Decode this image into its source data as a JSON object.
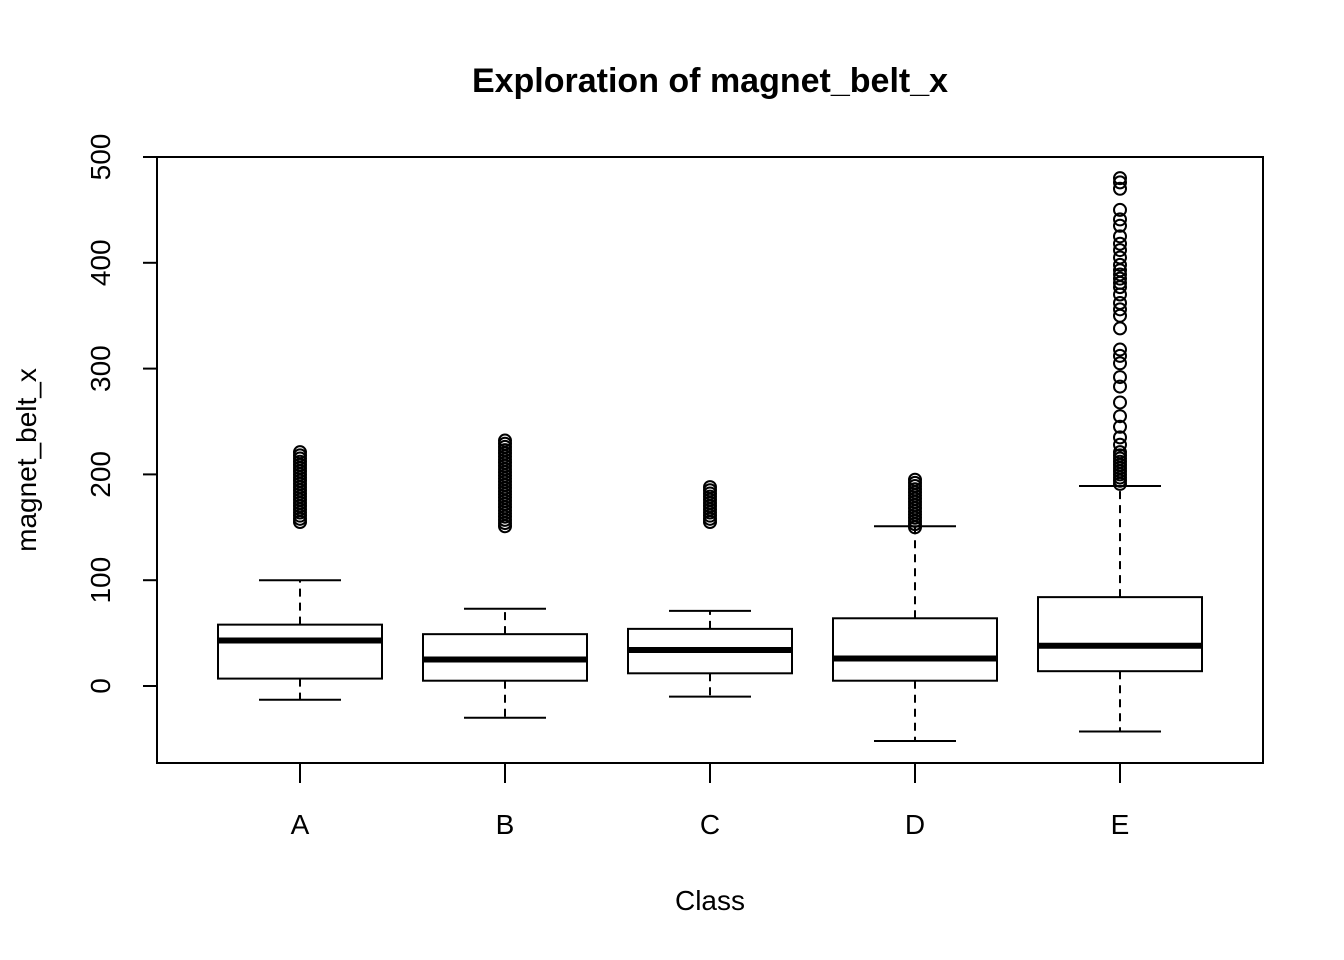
{
  "chart_data": {
    "type": "boxplot",
    "title": "Exploration of  magnet_belt_x",
    "xlabel": "Class",
    "ylabel": "magnet_belt_x",
    "ylim": [
      -73,
      501
    ],
    "yticks": [
      0,
      100,
      200,
      300,
      400,
      500
    ],
    "grid": false,
    "categories": [
      "A",
      "B",
      "C",
      "D",
      "E"
    ],
    "boxes": [
      {
        "category": "A",
        "whisker_low": -13,
        "q1": 7,
        "median": 43,
        "q3": 58,
        "whisker_high": 100,
        "outliers": [
          155,
          158,
          161,
          164,
          167,
          170,
          173,
          176,
          179,
          182,
          185,
          188,
          191,
          194,
          197,
          200,
          203,
          206,
          209,
          212,
          215,
          218,
          221
        ]
      },
      {
        "category": "B",
        "whisker_low": -30,
        "q1": 5,
        "median": 25,
        "q3": 49,
        "whisker_high": 73,
        "outliers": [
          151,
          154,
          157,
          160,
          163,
          166,
          169,
          172,
          175,
          178,
          181,
          184,
          187,
          190,
          193,
          196,
          199,
          202,
          205,
          208,
          211,
          214,
          217,
          220,
          223,
          226,
          229,
          232
        ]
      },
      {
        "category": "C",
        "whisker_low": -10,
        "q1": 12,
        "median": 34,
        "q3": 54,
        "whisker_high": 71,
        "outliers": [
          155,
          158,
          161,
          164,
          167,
          170,
          173,
          176,
          179,
          182,
          185,
          188
        ]
      },
      {
        "category": "D",
        "whisker_low": -52,
        "q1": 5,
        "median": 26,
        "q3": 64,
        "whisker_high": 151,
        "outliers": [
          150,
          153,
          156,
          159,
          162,
          165,
          168,
          171,
          174,
          177,
          180,
          183,
          186,
          189,
          192,
          195
        ]
      },
      {
        "category": "E",
        "whisker_low": -43,
        "q1": 14,
        "median": 38,
        "q3": 84,
        "whisker_high": 189,
        "outliers": [
          191,
          194,
          197,
          200,
          203,
          206,
          209,
          212,
          215,
          218,
          221,
          228,
          235,
          245,
          255,
          268,
          283,
          292,
          305,
          312,
          318,
          338,
          350,
          356,
          362,
          370,
          377,
          381,
          385,
          389,
          393,
          398,
          405,
          412,
          418,
          425,
          435,
          441,
          450,
          470,
          476,
          480
        ]
      }
    ]
  }
}
